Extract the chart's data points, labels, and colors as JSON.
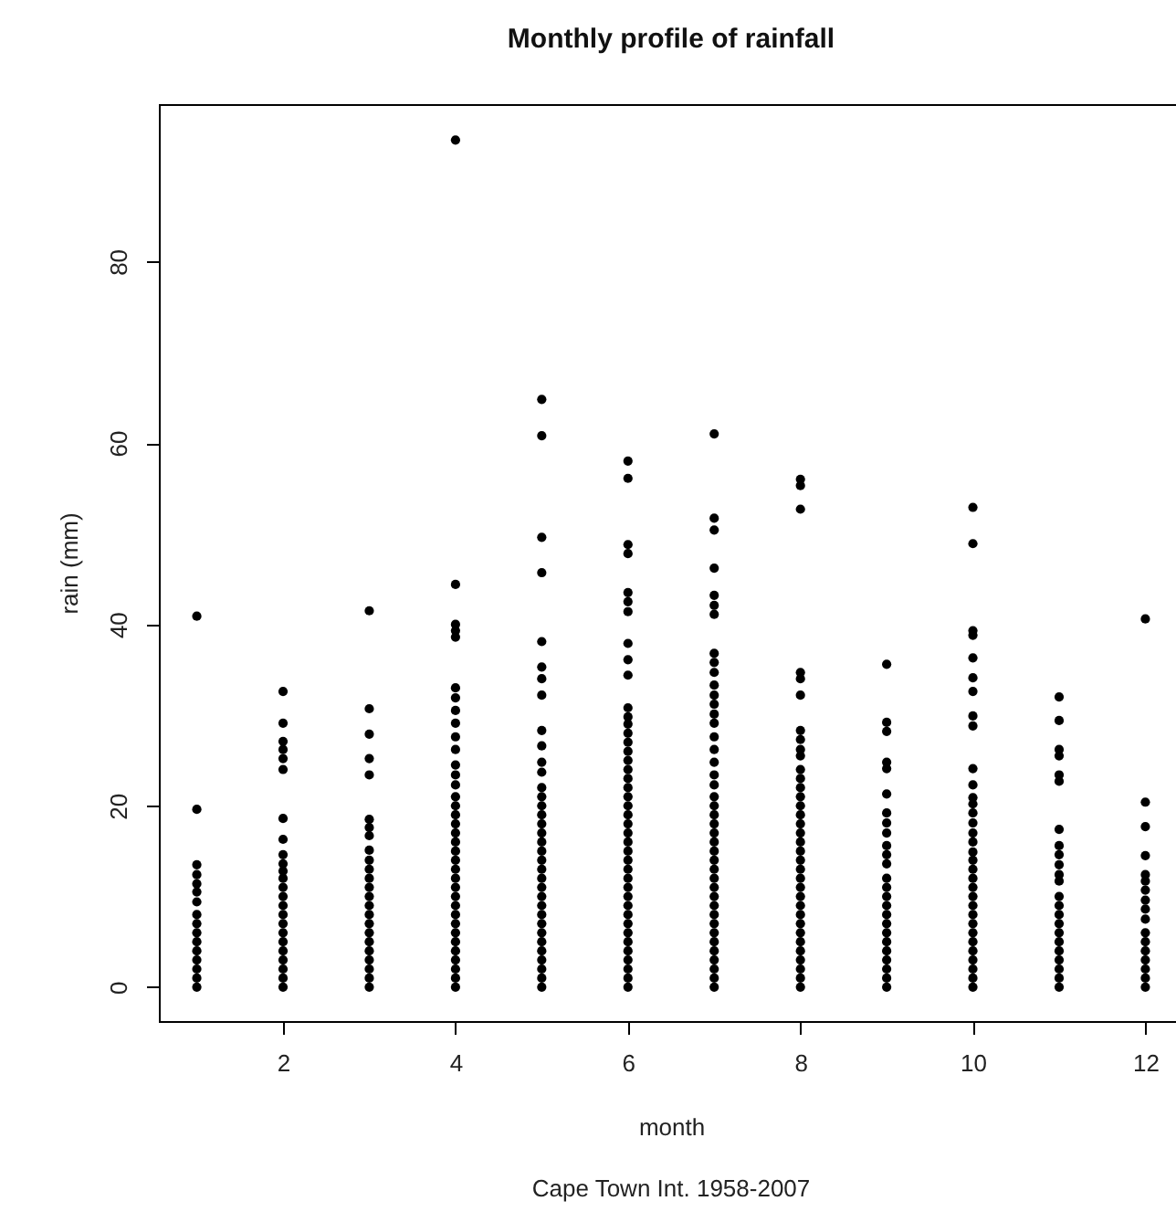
{
  "chart_data": {
    "type": "scatter",
    "title": "Monthly profile of rainfall",
    "xlabel": "month",
    "ylabel": "rain (mm)",
    "annotations": [
      "Cape Town Int. 1958-2007"
    ],
    "xlim": [
      0.56,
      12.44
    ],
    "xticks": [
      2,
      4,
      6,
      8,
      10,
      12
    ],
    "ylim": [
      -3.74,
      97.36
    ],
    "yticks": [
      0,
      20,
      40,
      60,
      80
    ],
    "marker": "circle",
    "series": [
      {
        "color": "#000000",
        "x": [
          1,
          1,
          1,
          1,
          1,
          1,
          1,
          1,
          1,
          1,
          1,
          1,
          1,
          1,
          1,
          1
        ],
        "values": [
          40.9,
          19.6,
          13.5,
          12.4,
          11.4,
          10.5,
          9.4,
          8,
          7,
          6,
          5,
          4,
          3,
          2,
          1,
          0
        ]
      },
      {
        "color": "#000000",
        "x": [
          2,
          2,
          2,
          2,
          2,
          2,
          2,
          2,
          2,
          2,
          2,
          2,
          2,
          2,
          2,
          2,
          2,
          2,
          2,
          2,
          2,
          2,
          2,
          2
        ],
        "values": [
          32.6,
          29.1,
          27.1,
          26.2,
          25.2,
          24.0,
          18.6,
          16.3,
          14.6,
          13.6,
          12.8,
          12,
          11,
          10,
          9,
          8,
          7,
          6,
          5,
          4,
          3,
          2,
          1,
          0
        ]
      },
      {
        "color": "#000000",
        "x": [
          3,
          3,
          3,
          3,
          3,
          3,
          3,
          3,
          3,
          3,
          3,
          3,
          3,
          3,
          3,
          3,
          3,
          3,
          3,
          3,
          3,
          3,
          3,
          3
        ],
        "values": [
          41.5,
          30.7,
          27.9,
          25.2,
          23.4,
          18.5,
          17.6,
          16.7,
          15.1,
          14,
          13,
          12,
          11,
          10,
          9,
          8,
          7,
          6,
          5,
          4,
          3,
          2,
          1,
          0
        ]
      },
      {
        "color": "#000000",
        "x": [
          4,
          4,
          4,
          4,
          4,
          4,
          4,
          4,
          4,
          4,
          4,
          4,
          4,
          4,
          4,
          4,
          4,
          4,
          4,
          4,
          4,
          4,
          4,
          4,
          4,
          4,
          4,
          4,
          4,
          4,
          4,
          4,
          4,
          4,
          4,
          4
        ],
        "values": [
          93.4,
          44.4,
          40.0,
          39.3,
          38.6,
          33.0,
          31.9,
          30.5,
          29.1,
          27.6,
          26.2,
          24.5,
          23.4,
          22.3,
          21,
          20,
          19,
          18,
          17,
          16,
          15,
          14,
          13,
          12,
          11,
          10,
          9,
          8,
          7,
          6,
          5,
          4,
          3,
          2,
          1,
          0
        ]
      },
      {
        "color": "#000000",
        "x": [
          5,
          5,
          5,
          5,
          5,
          5,
          5,
          5,
          5,
          5,
          5,
          5,
          5,
          5,
          5,
          5,
          5,
          5,
          5,
          5,
          5,
          5,
          5,
          5,
          5,
          5,
          5,
          5,
          5,
          5,
          5,
          5,
          5,
          5,
          5
        ],
        "values": [
          64.8,
          60.8,
          49.6,
          45.7,
          38.1,
          35.3,
          34.0,
          32.2,
          28.3,
          26.6,
          24.8,
          23.7,
          22,
          21,
          20,
          19,
          18,
          17,
          16,
          15,
          14,
          13,
          12,
          11,
          10,
          9,
          8,
          7,
          6,
          5,
          4,
          3,
          2,
          1,
          0
        ]
      },
      {
        "color": "#000000",
        "x": [
          6,
          6,
          6,
          6,
          6,
          6,
          6,
          6,
          6,
          6,
          6,
          6,
          6,
          6,
          6,
          6,
          6,
          6,
          6,
          6,
          6,
          6,
          6,
          6,
          6,
          6,
          6,
          6,
          6,
          6,
          6,
          6,
          6,
          6,
          6,
          6,
          6,
          6,
          6,
          6,
          6,
          6
        ],
        "values": [
          58.0,
          56.1,
          48.8,
          47.8,
          43.5,
          42.5,
          41.4,
          37.9,
          36.1,
          34.4,
          30.8,
          29.8,
          29,
          28,
          27,
          26,
          25,
          24,
          23,
          22,
          21,
          20,
          19,
          18,
          17,
          16,
          15,
          14,
          13,
          12,
          11,
          10,
          9,
          8,
          7,
          6,
          5,
          4,
          3,
          2,
          1,
          0
        ]
      },
      {
        "color": "#000000",
        "x": [
          7,
          7,
          7,
          7,
          7,
          7,
          7,
          7,
          7,
          7,
          7,
          7,
          7,
          7,
          7,
          7,
          7,
          7,
          7,
          7,
          7,
          7,
          7,
          7,
          7,
          7,
          7,
          7,
          7,
          7,
          7,
          7,
          7,
          7,
          7,
          7,
          7,
          7,
          7,
          7,
          7,
          7
        ],
        "values": [
          61.0,
          51.7,
          50.4,
          46.2,
          43.2,
          42.1,
          41.1,
          36.8,
          35.8,
          34.7,
          33.3,
          32.2,
          31.2,
          30.1,
          29.1,
          27.6,
          26.2,
          24.8,
          23.4,
          22.3,
          21,
          20,
          19,
          18,
          17,
          16,
          15,
          14,
          13,
          12,
          11,
          10,
          9,
          8,
          7,
          6,
          5,
          4,
          3,
          2,
          1,
          0
        ]
      },
      {
        "color": "#000000",
        "x": [
          8,
          8,
          8,
          8,
          8,
          8,
          8,
          8,
          8,
          8,
          8,
          8,
          8,
          8,
          8,
          8,
          8,
          8,
          8,
          8,
          8,
          8,
          8,
          8,
          8,
          8,
          8,
          8,
          8,
          8,
          8,
          8,
          8,
          8,
          8
        ],
        "values": [
          56.0,
          55.3,
          52.7,
          34.7,
          34.0,
          32.2,
          28.3,
          27.3,
          26.2,
          25.5,
          24,
          23,
          22,
          21,
          20,
          19,
          18,
          17,
          16,
          15,
          14,
          13,
          12,
          11,
          10,
          9,
          8,
          7,
          6,
          5,
          4,
          3,
          2,
          1,
          0
        ]
      },
      {
        "color": "#000000",
        "x": [
          9,
          9,
          9,
          9,
          9,
          9,
          9,
          9,
          9,
          9,
          9,
          9,
          9,
          9,
          9,
          9,
          9,
          9,
          9,
          9,
          9,
          9,
          9,
          9,
          9
        ],
        "values": [
          35.6,
          29.2,
          28.2,
          24.8,
          24.1,
          21.3,
          19.2,
          18.1,
          17.0,
          15.6,
          14.6,
          13.6,
          12,
          11,
          10,
          9,
          8,
          7,
          6,
          5,
          4,
          3,
          2,
          1,
          0
        ]
      },
      {
        "color": "#000000",
        "x": [
          10,
          10,
          10,
          10,
          10,
          10,
          10,
          10,
          10,
          10,
          10,
          10,
          10,
          10,
          10,
          10,
          10,
          10,
          10,
          10,
          10,
          10,
          10,
          10,
          10,
          10,
          10,
          10,
          10,
          10,
          10,
          10,
          10
        ],
        "values": [
          52.9,
          48.9,
          39.3,
          38.8,
          36.3,
          34.1,
          32.6,
          29.9,
          28.8,
          24.1,
          22.3,
          20.9,
          20.2,
          19.2,
          18.1,
          17.0,
          16.0,
          14.9,
          14,
          13,
          12,
          11,
          10,
          9,
          8,
          7,
          6,
          5,
          4,
          3,
          2,
          1,
          0
        ]
      },
      {
        "color": "#000000",
        "x": [
          11,
          11,
          11,
          11,
          11,
          11,
          11,
          11,
          11,
          11,
          11,
          11,
          11,
          11,
          11,
          11,
          11,
          11,
          11,
          11,
          11,
          11,
          11
        ],
        "values": [
          32.0,
          29.4,
          26.2,
          25.5,
          23.4,
          22.7,
          17.4,
          15.6,
          14.6,
          13.5,
          12.4,
          11.7,
          10,
          9,
          8,
          7,
          6,
          5,
          4,
          3,
          2,
          1,
          0
        ]
      },
      {
        "color": "#000000",
        "x": [
          12,
          12,
          12,
          12,
          12,
          12,
          12,
          12,
          12,
          12,
          12,
          12,
          12,
          12,
          12,
          12,
          12
        ],
        "values": [
          40.6,
          20.4,
          17.7,
          14.5,
          12.4,
          11.7,
          10.7,
          9.6,
          8.6,
          7.5,
          6,
          5,
          4,
          3,
          2,
          1,
          0
        ]
      }
    ]
  }
}
